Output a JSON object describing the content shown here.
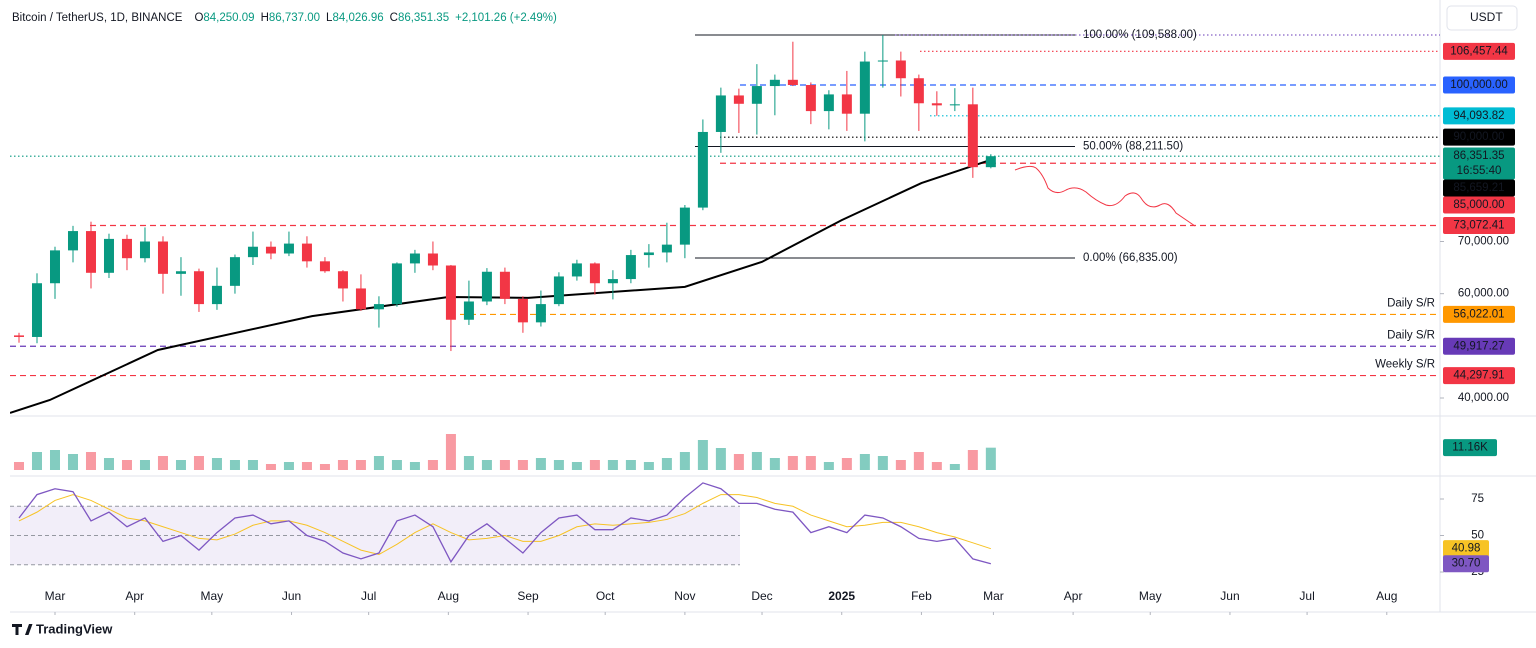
{
  "chart_data": {
    "type": "candlestick",
    "symbol": "Bitcoin / TetherUS, 1D, BINANCE",
    "ohlc": [
      {
        "key": "O",
        "value": 84250.09,
        "label": "84,250.09"
      },
      {
        "key": "H",
        "value": 86737,
        "label": "86,737.00"
      },
      {
        "key": "L",
        "value": 84026.96,
        "label": "84,026.96"
      },
      {
        "key": "C",
        "value": 86351.35,
        "label": "86,351.35"
      }
    ],
    "change": "+2,101.26 (+2.49%)",
    "currency": "USDT",
    "countdown": "16:55:40",
    "brand": "TradingView",
    "up_color": "#089981",
    "down_color": "#f23645",
    "xlim": [
      -17.5,
      538.7
    ],
    "xticks": [
      {
        "value": 0,
        "label": "Mar"
      },
      {
        "value": 31,
        "label": "Apr"
      },
      {
        "value": 61,
        "label": "May"
      },
      {
        "value": 92,
        "label": "Jun"
      },
      {
        "value": 122,
        "label": "Jul"
      },
      {
        "value": 153,
        "label": "Aug"
      },
      {
        "value": 184,
        "label": "Sep"
      },
      {
        "value": 214,
        "label": "Oct"
      },
      {
        "value": 245,
        "label": "Nov"
      },
      {
        "value": 275,
        "label": "Dec"
      },
      {
        "value": 306,
        "label": "2025"
      },
      {
        "value": 337,
        "label": "Feb"
      },
      {
        "value": 365,
        "label": "Mar"
      },
      {
        "value": 396,
        "label": "Apr"
      },
      {
        "value": 426,
        "label": "May"
      },
      {
        "value": 457,
        "label": "Jun"
      },
      {
        "value": 487,
        "label": "Jul"
      },
      {
        "value": 518,
        "label": "Aug"
      }
    ],
    "ylim": [
      36740,
      114380
    ],
    "yticks": [
      {
        "value": 70000,
        "label": "70,000.00"
      },
      {
        "value": 60000,
        "label": "60,000.00"
      },
      {
        "value": 40000,
        "label": "40,000.00"
      }
    ],
    "candles": [
      {
        "x": -14,
        "open": 52000,
        "high": 52500,
        "low": 50600,
        "close": 51700,
        "volume": 4,
        "rsi": 62,
        "rsi_ma": 60
      },
      {
        "x": -7,
        "open": 51700,
        "high": 63900,
        "low": 50500,
        "close": 62000,
        "volume": 9,
        "rsi": 78,
        "rsi_ma": 66
      },
      {
        "x": 0,
        "open": 62000,
        "high": 69000,
        "low": 59000,
        "close": 68300,
        "volume": 10,
        "rsi": 82,
        "rsi_ma": 74
      },
      {
        "x": 7,
        "open": 68300,
        "high": 73000,
        "low": 66000,
        "close": 72000,
        "volume": 8,
        "rsi": 80,
        "rsi_ma": 78
      },
      {
        "x": 14,
        "open": 72000,
        "high": 73800,
        "low": 61000,
        "close": 64000,
        "volume": 9,
        "rsi": 60,
        "rsi_ma": 74
      },
      {
        "x": 21,
        "open": 64000,
        "high": 71500,
        "low": 63000,
        "close": 70500,
        "volume": 6,
        "rsi": 66,
        "rsi_ma": 68
      },
      {
        "x": 28,
        "open": 70500,
        "high": 71300,
        "low": 64500,
        "close": 66800,
        "volume": 5,
        "rsi": 56,
        "rsi_ma": 62
      },
      {
        "x": 35,
        "open": 66800,
        "high": 72700,
        "low": 66000,
        "close": 70000,
        "volume": 5,
        "rsi": 62,
        "rsi_ma": 60
      },
      {
        "x": 42,
        "open": 70000,
        "high": 71000,
        "low": 60000,
        "close": 63800,
        "volume": 7,
        "rsi": 46,
        "rsi_ma": 56
      },
      {
        "x": 49,
        "open": 63800,
        "high": 67000,
        "low": 59600,
        "close": 64300,
        "volume": 5,
        "rsi": 50,
        "rsi_ma": 52
      },
      {
        "x": 56,
        "open": 64300,
        "high": 64800,
        "low": 56500,
        "close": 58000,
        "volume": 7,
        "rsi": 40,
        "rsi_ma": 48
      },
      {
        "x": 63,
        "open": 58000,
        "high": 65000,
        "low": 56900,
        "close": 61500,
        "volume": 6,
        "rsi": 52,
        "rsi_ma": 47
      },
      {
        "x": 70,
        "open": 61500,
        "high": 67500,
        "low": 60000,
        "close": 67000,
        "volume": 5,
        "rsi": 62,
        "rsi_ma": 51
      },
      {
        "x": 77,
        "open": 67000,
        "high": 71900,
        "low": 65500,
        "close": 69000,
        "volume": 5,
        "rsi": 64,
        "rsi_ma": 57
      },
      {
        "x": 84,
        "open": 69000,
        "high": 70000,
        "low": 66600,
        "close": 67700,
        "volume": 3,
        "rsi": 58,
        "rsi_ma": 60
      },
      {
        "x": 91,
        "open": 67700,
        "high": 71900,
        "low": 67200,
        "close": 69600,
        "volume": 4,
        "rsi": 60,
        "rsi_ma": 60
      },
      {
        "x": 98,
        "open": 69600,
        "high": 71000,
        "low": 65000,
        "close": 66200,
        "volume": 4,
        "rsi": 50,
        "rsi_ma": 57
      },
      {
        "x": 105,
        "open": 66200,
        "high": 67000,
        "low": 64000,
        "close": 64300,
        "volume": 3,
        "rsi": 46,
        "rsi_ma": 52
      },
      {
        "x": 112,
        "open": 64300,
        "high": 64500,
        "low": 58500,
        "close": 61000,
        "volume": 5,
        "rsi": 38,
        "rsi_ma": 46
      },
      {
        "x": 119,
        "open": 61000,
        "high": 63700,
        "low": 56700,
        "close": 57000,
        "volume": 5,
        "rsi": 34,
        "rsi_ma": 40
      },
      {
        "x": 126,
        "open": 57000,
        "high": 59500,
        "low": 53500,
        "close": 58000,
        "volume": 7,
        "rsi": 38,
        "rsi_ma": 37
      },
      {
        "x": 133,
        "open": 58000,
        "high": 66000,
        "low": 57500,
        "close": 65800,
        "volume": 5,
        "rsi": 60,
        "rsi_ma": 44
      },
      {
        "x": 140,
        "open": 65800,
        "high": 68400,
        "low": 64000,
        "close": 67700,
        "volume": 4,
        "rsi": 64,
        "rsi_ma": 52
      },
      {
        "x": 147,
        "open": 67700,
        "high": 70000,
        "low": 64500,
        "close": 65400,
        "volume": 5,
        "rsi": 56,
        "rsi_ma": 58
      },
      {
        "x": 154,
        "open": 65400,
        "high": 65500,
        "low": 49000,
        "close": 55000,
        "volume": 18,
        "rsi": 32,
        "rsi_ma": 52
      },
      {
        "x": 161,
        "open": 55000,
        "high": 62500,
        "low": 54000,
        "close": 58500,
        "volume": 7,
        "rsi": 50,
        "rsi_ma": 47
      },
      {
        "x": 168,
        "open": 58500,
        "high": 64900,
        "low": 57800,
        "close": 64200,
        "volume": 5,
        "rsi": 58,
        "rsi_ma": 48
      },
      {
        "x": 175,
        "open": 64200,
        "high": 65000,
        "low": 58000,
        "close": 59000,
        "volume": 5,
        "rsi": 48,
        "rsi_ma": 50
      },
      {
        "x": 182,
        "open": 59000,
        "high": 59500,
        "low": 52500,
        "close": 54500,
        "volume": 5,
        "rsi": 38,
        "rsi_ma": 46
      },
      {
        "x": 189,
        "open": 54500,
        "high": 60600,
        "low": 53700,
        "close": 58000,
        "volume": 6,
        "rsi": 52,
        "rsi_ma": 46
      },
      {
        "x": 196,
        "open": 58000,
        "high": 64100,
        "low": 57600,
        "close": 63300,
        "volume": 5,
        "rsi": 62,
        "rsi_ma": 50
      },
      {
        "x": 203,
        "open": 63300,
        "high": 66500,
        "low": 62500,
        "close": 65800,
        "volume": 4,
        "rsi": 64,
        "rsi_ma": 56
      },
      {
        "x": 210,
        "open": 65800,
        "high": 66000,
        "low": 59800,
        "close": 62000,
        "volume": 5,
        "rsi": 54,
        "rsi_ma": 58
      },
      {
        "x": 217,
        "open": 62000,
        "high": 64500,
        "low": 58900,
        "close": 62800,
        "volume": 5,
        "rsi": 54,
        "rsi_ma": 57
      },
      {
        "x": 224,
        "open": 62800,
        "high": 68400,
        "low": 62000,
        "close": 67400,
        "volume": 5,
        "rsi": 62,
        "rsi_ma": 58
      },
      {
        "x": 231,
        "open": 67400,
        "high": 69500,
        "low": 65000,
        "close": 67900,
        "volume": 4,
        "rsi": 60,
        "rsi_ma": 59
      },
      {
        "x": 238,
        "open": 67900,
        "high": 73600,
        "low": 66000,
        "close": 69400,
        "volume": 6,
        "rsi": 64,
        "rsi_ma": 61
      },
      {
        "x": 245,
        "open": 69400,
        "high": 77000,
        "low": 66800,
        "close": 76500,
        "volume": 9,
        "rsi": 76,
        "rsi_ma": 65
      },
      {
        "x": 252,
        "open": 76500,
        "high": 93400,
        "low": 76000,
        "close": 91000,
        "volume": 15,
        "rsi": 86,
        "rsi_ma": 72
      },
      {
        "x": 259,
        "open": 91000,
        "high": 99500,
        "low": 87000,
        "close": 98000,
        "volume": 11,
        "rsi": 82,
        "rsi_ma": 78
      },
      {
        "x": 266,
        "open": 98000,
        "high": 99300,
        "low": 90800,
        "close": 96400,
        "volume": 8,
        "rsi": 72,
        "rsi_ma": 78
      },
      {
        "x": 273,
        "open": 96400,
        "high": 104000,
        "low": 90500,
        "close": 99800,
        "volume": 9,
        "rsi": 72,
        "rsi_ma": 76
      },
      {
        "x": 280,
        "open": 99800,
        "high": 102000,
        "low": 94200,
        "close": 101000,
        "volume": 6,
        "rsi": 68,
        "rsi_ma": 72
      },
      {
        "x": 287,
        "open": 101000,
        "high": 108300,
        "low": 99800,
        "close": 100000,
        "volume": 7,
        "rsi": 66,
        "rsi_ma": 70
      },
      {
        "x": 294,
        "open": 100000,
        "high": 100500,
        "low": 92500,
        "close": 95000,
        "volume": 7,
        "rsi": 52,
        "rsi_ma": 64
      },
      {
        "x": 301,
        "open": 95000,
        "high": 99000,
        "low": 91500,
        "close": 98200,
        "volume": 4,
        "rsi": 56,
        "rsi_ma": 60
      },
      {
        "x": 308,
        "open": 98200,
        "high": 102700,
        "low": 91200,
        "close": 94500,
        "volume": 6,
        "rsi": 52,
        "rsi_ma": 56
      },
      {
        "x": 315,
        "open": 94500,
        "high": 106400,
        "low": 89200,
        "close": 104500,
        "volume": 8,
        "rsi": 64,
        "rsi_ma": 57
      },
      {
        "x": 322,
        "open": 104500,
        "high": 109588,
        "low": 99500,
        "close": 104700,
        "volume": 7,
        "rsi": 62,
        "rsi_ma": 59
      },
      {
        "x": 329,
        "open": 104700,
        "high": 106400,
        "low": 97800,
        "close": 101300,
        "volume": 5,
        "rsi": 56,
        "rsi_ma": 59
      },
      {
        "x": 336,
        "open": 101300,
        "high": 102000,
        "low": 91200,
        "close": 96500,
        "volume": 9,
        "rsi": 48,
        "rsi_ma": 56
      },
      {
        "x": 343,
        "open": 96500,
        "high": 98800,
        "low": 94100,
        "close": 96100,
        "volume": 4,
        "rsi": 46,
        "rsi_ma": 52
      },
      {
        "x": 350,
        "open": 96100,
        "high": 99400,
        "low": 95000,
        "close": 96300,
        "volume": 3,
        "rsi": 48,
        "rsi_ma": 49
      },
      {
        "x": 357,
        "open": 96300,
        "high": 99500,
        "low": 82200,
        "close": 84250.09,
        "volume": 10,
        "rsi": 34,
        "rsi_ma": 45
      },
      {
        "x": 364,
        "open": 84250.09,
        "high": 86737,
        "low": 84026.96,
        "close": 86351.35,
        "volume": 11.16,
        "rsi": 30.7,
        "rsi_ma": 40.98
      }
    ],
    "ma200": {
      "color": "#000000",
      "x": [
        -17.5,
        -2,
        40,
        100,
        153,
        184,
        245,
        275,
        306,
        337,
        364
      ],
      "values": [
        37130,
        39620,
        49200,
        55700,
        59360,
        59200,
        61300,
        66100,
        74100,
        81200,
        85659.21
      ]
    },
    "fib": [
      {
        "value": 109588,
        "label": "100.00% (109,588.00)"
      },
      {
        "value": 88211.5,
        "label": "50.00% (88,211.50)"
      },
      {
        "value": 66835,
        "label": "0.00% (66,835.00)"
      }
    ],
    "levels": [
      {
        "value": 106457.44,
        "label": "106,457.44",
        "color": "#f23645",
        "style": "dotted"
      },
      {
        "value": 100000,
        "label": "100,000.00",
        "color": "#2962ff",
        "style": "dashed"
      },
      {
        "value": 94093.82,
        "label": "94,093.82",
        "color": "#00bcd4",
        "style": "dotted"
      },
      {
        "value": 90000,
        "label": "90,000.00",
        "color": "#000000",
        "style": "dotted"
      },
      {
        "value": 86351.35,
        "label": "86,351.35",
        "color": "#089981",
        "style": "dotted"
      },
      {
        "value": 85659.21,
        "label": "85,659.21",
        "color": "#000000",
        "style": "none"
      },
      {
        "value": 85000,
        "label": "85,000.00",
        "color": "#f23645",
        "style": "dashed"
      },
      {
        "value": 73072.41,
        "label": "73,072.41",
        "color": "#f23645",
        "style": "dashed"
      },
      {
        "value": 56022.01,
        "label": "56,022.01",
        "color": "#ff9800",
        "style": "dashed",
        "note": "Daily S/R"
      },
      {
        "value": 49917.27,
        "label": "49,917.27",
        "color": "#673ab7",
        "style": "dashed",
        "note": "Daily S/R"
      },
      {
        "value": 44297.91,
        "label": "44,297.91",
        "color": "#f23645",
        "style": "dashed",
        "note": "Weekly S/R"
      }
    ],
    "volume_lim": [
      0,
      24
    ],
    "volume_label": {
      "value": 11.16,
      "label": "11.16K",
      "color": "#089981"
    },
    "rsi_lim": [
      -1,
      88
    ],
    "rsi_ticks": [
      75,
      50,
      25
    ],
    "rsi_band": [
      70,
      30
    ],
    "rsi_color": "#7e57c2",
    "rsi_ma_color": "#f7c325",
    "rsi_labels": [
      {
        "value": 40.98,
        "label": "40.98",
        "color": "#f7c325"
      },
      {
        "value": 30.7,
        "label": "30.70",
        "color": "#7e57c2"
      }
    ]
  }
}
